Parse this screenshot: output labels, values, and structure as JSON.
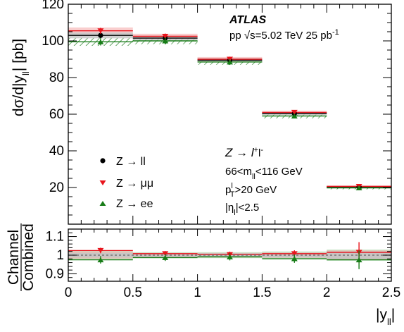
{
  "colors": {
    "combined": "#000000",
    "mumu": "#e8141c",
    "ee": "#177c17",
    "combined_band": "#c4c4c4",
    "mumu_band": "#f4a6a6",
    "ee_hatch": "#1f7a1f"
  },
  "chart_data": [
    {
      "type": "scatter",
      "panel": "main",
      "x_bins": [
        [
          0,
          0.5
        ],
        [
          0.5,
          1.0
        ],
        [
          1.0,
          1.5
        ],
        [
          1.5,
          2.0
        ],
        [
          2.0,
          2.5
        ]
      ],
      "x": [
        0.25,
        0.75,
        1.25,
        1.75,
        2.25
      ],
      "xlim": [
        0,
        2.5
      ],
      "ylim": [
        0,
        120
      ],
      "yticks": [
        20,
        40,
        60,
        80,
        100,
        120
      ],
      "ylabel": "dσ/d|y",
      "ylabel_sub": "ll",
      "ylabel_tail": "| [pb]",
      "series": [
        {
          "name": "Z → ll",
          "values": [
            103.0,
            101.5,
            89.5,
            60.3,
            20.3
          ],
          "errors": [
            1.5,
            1.4,
            1.3,
            0.9,
            0.5
          ],
          "band": [
            1.6,
            1.2,
            1.0,
            0.8,
            0.5
          ]
        },
        {
          "name": "Z → μμ",
          "values": [
            105.5,
            102.5,
            90.0,
            61.0,
            20.6
          ],
          "errors": [
            1.6,
            1.5,
            1.4,
            1.0,
            0.6
          ],
          "band": [
            1.8,
            1.4,
            1.2,
            0.9,
            0.6
          ]
        },
        {
          "name": "Z → ee",
          "values": [
            99.5,
            100.0,
            88.5,
            59.0,
            19.8
          ],
          "errors": [
            2.0,
            1.8,
            1.6,
            1.2,
            0.8
          ],
          "band": [
            2.2,
            1.8,
            1.5,
            1.3,
            0.8
          ]
        }
      ]
    },
    {
      "type": "scatter",
      "panel": "ratio",
      "x": [
        0.25,
        0.75,
        1.25,
        1.75,
        2.25
      ],
      "xlim": [
        0,
        2.5
      ],
      "ylim": [
        0.86,
        1.14
      ],
      "yticks": [
        0.9,
        1,
        1.1
      ],
      "xticks": [
        0,
        0.5,
        1,
        1.5,
        2,
        2.5
      ],
      "ylabel_top": "Channel",
      "ylabel_bottom": "Combined",
      "xlabel": "|y",
      "xlabel_sub": "ll",
      "xlabel_tail": "|",
      "series": [
        {
          "name": "Z → μμ",
          "values": [
            1.025,
            1.008,
            1.003,
            1.008,
            1.015
          ],
          "errors": [
            0.015,
            0.014,
            0.016,
            0.018,
            0.055
          ]
        },
        {
          "name": "Z → ee",
          "values": [
            0.975,
            0.987,
            0.991,
            0.981,
            0.975
          ],
          "errors": [
            0.02,
            0.018,
            0.019,
            0.022,
            0.05
          ]
        }
      ],
      "bands": {
        "combined": [
          0.012,
          0.01,
          0.01,
          0.012,
          0.02
        ],
        "mumu": [
          0.018,
          0.012,
          0.012,
          0.014,
          0.025
        ],
        "ee": [
          0.022,
          0.016,
          0.016,
          0.02,
          0.03
        ]
      }
    }
  ],
  "annotations": {
    "experiment": "ATLAS",
    "energy_prefix": "pp  ",
    "energy_main": "s=5.02 TeV  25 pb",
    "energy_sup": "-1",
    "process": "Z → l",
    "process_sup1": "+",
    "process_mid": "l",
    "process_sup2": "-",
    "mass_a": "66<m",
    "mass_sub": "ll",
    "mass_b": "<116 GeV",
    "pt_a": "p",
    "pt_sup": "l",
    "pt_sub": "T",
    "pt_b": ">20 GeV",
    "eta_a": "|η",
    "eta_sub": "l",
    "eta_b": "|<2.5"
  },
  "legend": {
    "position": "left-middle",
    "entries": [
      {
        "label": "Z → ll",
        "marker": "circle"
      },
      {
        "label": "Z → μμ",
        "marker": "triangle-down"
      },
      {
        "label": "Z → ee",
        "marker": "triangle-up"
      }
    ]
  }
}
